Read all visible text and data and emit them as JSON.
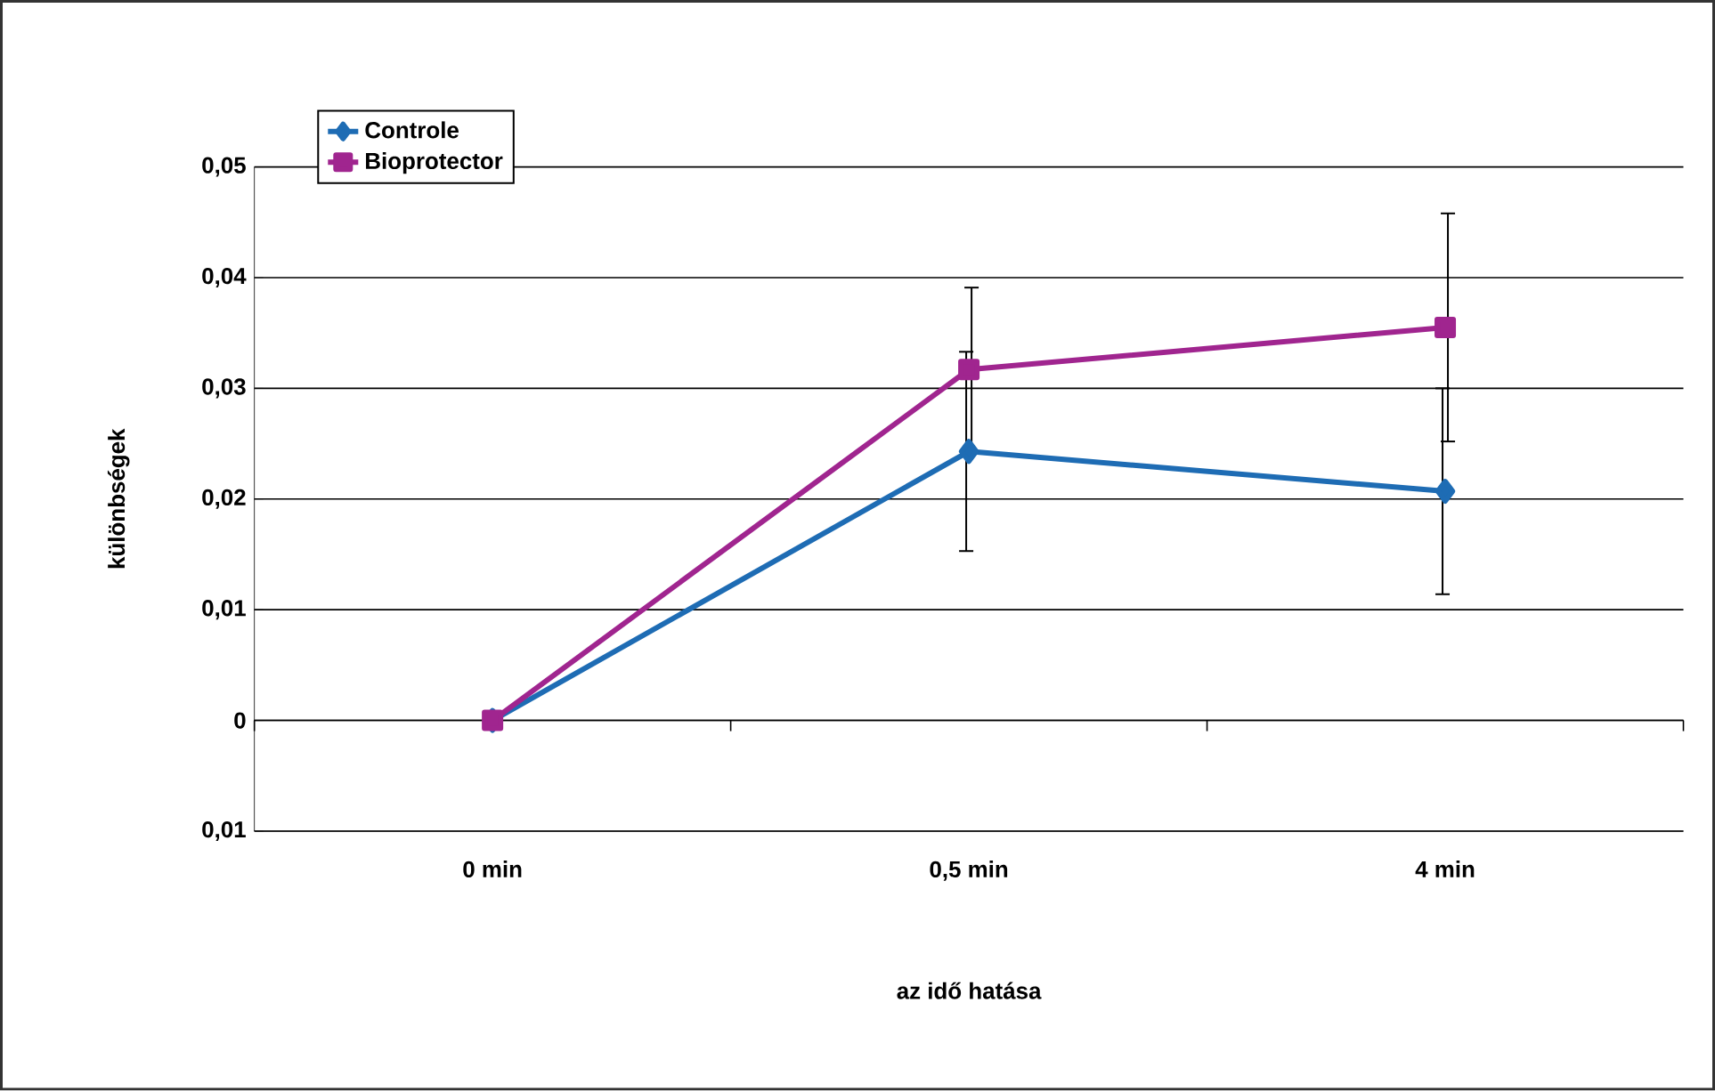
{
  "chart_data": {
    "type": "line",
    "xlabel": "az idő hatása",
    "ylabel": "különbségek",
    "categories": [
      "0 min",
      "0,5 min",
      "4 min"
    ],
    "series": [
      {
        "name": "Controle",
        "color": "#1e6cb4",
        "marker": "diamond",
        "values": [
          0,
          0.0243,
          0.0207
        ],
        "errors": [
          null,
          0.009,
          0.0093
        ]
      },
      {
        "name": "Bioprotector",
        "color": "#a0258f",
        "marker": "square",
        "values": [
          0,
          0.0317,
          0.0355
        ],
        "errors": [
          null,
          0.0074,
          0.0103
        ]
      }
    ],
    "ylim": [
      -0.01,
      0.05
    ],
    "yticks": [
      {
        "value": -0.01,
        "label": "0,01"
      },
      {
        "value": 0,
        "label": "0"
      },
      {
        "value": 0.01,
        "label": "0,01"
      },
      {
        "value": 0.02,
        "label": "0,02"
      },
      {
        "value": 0.03,
        "label": "0,03"
      },
      {
        "value": 0.04,
        "label": "0,04"
      },
      {
        "value": 0.05,
        "label": "0,05"
      }
    ],
    "grid": "y",
    "legend": "top left"
  }
}
